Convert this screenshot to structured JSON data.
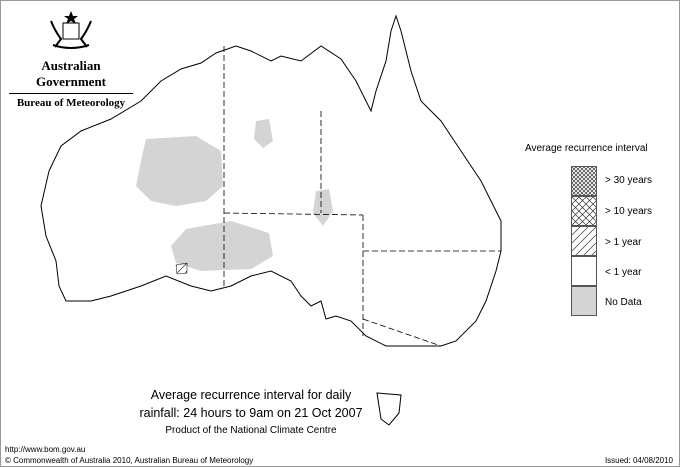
{
  "header": {
    "government": "Australian Government",
    "bureau": "Bureau of Meteorology"
  },
  "legend": {
    "title": "Average recurrence interval",
    "items": [
      {
        "label": "> 30 years",
        "pattern": "dense-crosshatch"
      },
      {
        "label": "> 10 years",
        "pattern": "crosshatch"
      },
      {
        "label": "> 1 year",
        "pattern": "diagonal-hatch"
      },
      {
        "label": "< 1 year",
        "pattern": "white"
      },
      {
        "label": "No Data",
        "pattern": "grey",
        "color": "#d4d4d4"
      }
    ]
  },
  "caption": {
    "line1": "Average recurrence interval for daily",
    "line2": "rainfall: 24 hours to 9am on 21 Oct 2007",
    "line3": "Product of the National Climate Centre"
  },
  "footer": {
    "url": "http://www.bom.gov.au",
    "copyright": "© Commonwealth of Australia 2010, Australian Bureau of Meteorology",
    "issued": "Issued: 04/08/2010"
  }
}
